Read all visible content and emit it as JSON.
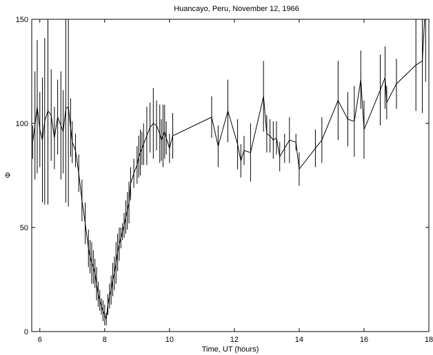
{
  "chart_data": {
    "type": "line",
    "title": "Huancayo, Peru, November 12, 1966",
    "xlabel": "Time, UT (hours)",
    "ylabel": "Φ",
    "xlim": [
      5.75,
      18
    ],
    "ylim": [
      0,
      150
    ],
    "xticks": [
      6,
      8,
      10,
      12,
      14,
      16,
      18
    ],
    "yticks": [
      0,
      50,
      100,
      150
    ],
    "grid": false,
    "legend": "none",
    "line_color": "#000000",
    "series": [
      {
        "x": [
          5.78,
          5.85,
          5.92,
          6.0,
          6.08,
          6.15,
          6.25,
          6.35,
          6.45,
          6.55,
          6.65,
          6.72,
          6.8,
          6.88,
          6.95,
          7.0,
          7.1,
          7.2,
          7.3,
          7.4,
          7.5,
          7.55,
          7.6,
          7.65,
          7.7,
          7.75,
          7.8,
          7.85,
          7.9,
          7.95,
          8.0,
          8.05,
          8.1,
          8.15,
          8.2,
          8.25,
          8.3,
          8.35,
          8.4,
          8.45,
          8.5,
          8.55,
          8.6,
          8.65,
          8.7,
          8.75,
          8.8,
          8.9,
          9.0,
          9.05,
          9.1,
          9.15,
          9.2,
          9.3,
          9.4,
          9.5,
          9.6,
          9.7,
          9.75,
          9.8,
          9.85,
          9.9,
          10.0,
          10.1,
          11.3,
          11.5,
          11.8,
          12.1,
          12.2,
          12.3,
          12.5,
          12.9,
          13.0,
          13.1,
          13.2,
          13.3,
          13.4,
          13.55,
          13.7,
          13.9,
          14.0,
          14.5,
          14.7,
          15.2,
          15.5,
          15.7,
          15.9,
          16.0,
          16.5,
          16.65,
          16.7,
          17.0,
          17.6,
          17.8,
          17.9
        ],
        "y": [
          91,
          99,
          108,
          97,
          92,
          101,
          106,
          104,
          93,
          103,
          99,
          96,
          107,
          108,
          98,
          91,
          87,
          76,
          63,
          52,
          40,
          36,
          33,
          31,
          28,
          23,
          18,
          15,
          12,
          10,
          8,
          6,
          13,
          17,
          20,
          25,
          28,
          33,
          38,
          42,
          45,
          48,
          51,
          55,
          58,
          62,
          71,
          76,
          80,
          84,
          86,
          88,
          90,
          94,
          98,
          100,
          99,
          95,
          92,
          94,
          96,
          93,
          88,
          94,
          103,
          89,
          106,
          90,
          82,
          87,
          86,
          113,
          95,
          94,
          92,
          93,
          84,
          88,
          92,
          91,
          78,
          88,
          92,
          111,
          102,
          101,
          121,
          97,
          116,
          122,
          110,
          119,
          128,
          130,
          160
        ],
        "err": [
          8,
          26,
          32,
          18,
          30,
          40,
          45,
          22,
          15,
          18,
          26,
          20,
          45,
          48,
          14,
          10,
          8,
          9,
          10,
          10,
          9,
          8,
          10,
          8,
          7,
          8,
          6,
          5,
          4,
          5,
          5,
          3,
          5,
          6,
          7,
          8,
          8,
          10,
          9,
          8,
          5,
          4,
          6,
          8,
          9,
          10,
          8,
          7,
          9,
          10,
          11,
          8,
          10,
          14,
          12,
          17,
          12,
          14,
          10,
          15,
          13,
          8,
          7,
          11,
          10,
          10,
          15,
          12,
          8,
          7,
          14,
          17,
          9,
          8,
          9,
          8,
          7,
          7,
          11,
          4,
          8,
          9,
          11,
          19,
          13,
          17,
          14,
          14,
          17,
          15,
          8,
          12,
          22,
          25,
          40
        ]
      }
    ]
  }
}
